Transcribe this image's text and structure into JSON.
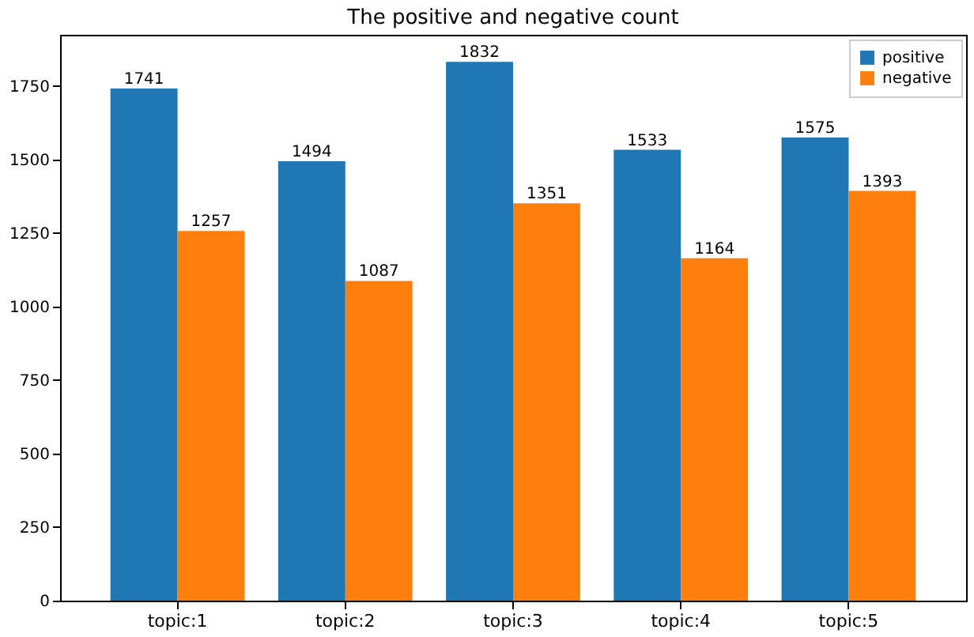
{
  "chart_data": {
    "type": "bar",
    "title": "The positive and negative count",
    "categories": [
      "topic:1",
      "topic:2",
      "topic:3",
      "topic:4",
      "topic:5"
    ],
    "series": [
      {
        "name": "positive",
        "color": "#1f77b4",
        "values": [
          1741,
          1494,
          1832,
          1533,
          1575
        ]
      },
      {
        "name": "negative",
        "color": "#ff7f0e",
        "values": [
          1257,
          1087,
          1351,
          1164,
          1393
        ]
      }
    ],
    "ylim": [
      0,
      1924
    ],
    "yticks": [
      0,
      250,
      500,
      750,
      1000,
      1250,
      1500,
      1750
    ],
    "data_labels": true,
    "grid": false,
    "legend": "top right"
  }
}
